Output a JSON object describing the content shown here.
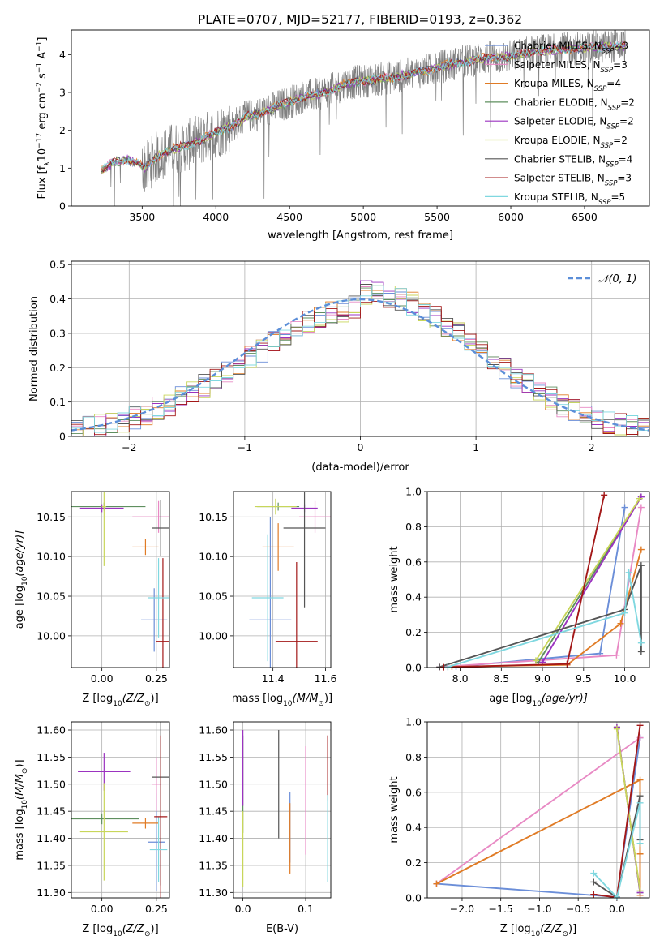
{
  "title": "PLATE=0707, MJD=52177, FIBERID=0193, z=0.362",
  "colors": {
    "Chabrier MILES": "#6b8ed8",
    "Salpeter MILES": "#e889c4",
    "Kroupa MILES": "#e07b25",
    "Chabrier ELODIE": "#5f8f5f",
    "Salpeter ELODIE": "#9b33c0",
    "Kroupa ELODIE": "#c8d65a",
    "Chabrier STELIB": "#555555",
    "Salpeter STELIB": "#a31818",
    "Kroupa STELIB": "#80d8e0",
    "gaussian": "#5b8ed8"
  },
  "legend": [
    {
      "name": "Chabrier MILES",
      "nssp": "3"
    },
    {
      "name": "Salpeter MILES",
      "nssp": "3"
    },
    {
      "name": "Kroupa MILES",
      "nssp": "4"
    },
    {
      "name": "Chabrier ELODIE",
      "nssp": "2"
    },
    {
      "name": "Salpeter ELODIE",
      "nssp": "2"
    },
    {
      "name": "Kroupa ELODIE",
      "nssp": "2"
    },
    {
      "name": "Chabrier STELIB",
      "nssp": "4"
    },
    {
      "name": "Salpeter STELIB",
      "nssp": "3"
    },
    {
      "name": "Kroupa STELIB",
      "nssp": "5"
    }
  ],
  "chart_data": [
    {
      "id": "spectrum",
      "type": "line",
      "xlabel": "wavelength [Angstrom, rest frame]",
      "ylabel_parts": [
        "Flux [f",
        "λ",
        "10",
        "−17",
        " erg cm",
        "−2",
        " s",
        "−1",
        " A",
        "−1",
        "]"
      ],
      "xlim": [
        3020,
        6940
      ],
      "ylim": [
        0,
        4.65
      ],
      "xticks": [
        3500,
        4000,
        4500,
        5000,
        5500,
        6000,
        6500
      ],
      "yticks": [
        0,
        1,
        2,
        3,
        4
      ],
      "grid": false,
      "legend_position": "top-right",
      "continuum_knots": [
        [
          3220,
          0.9
        ],
        [
          3300,
          1.15
        ],
        [
          3400,
          1.22
        ],
        [
          3480,
          1.12
        ],
        [
          3520,
          1.0
        ],
        [
          3600,
          1.3
        ],
        [
          3700,
          1.5
        ],
        [
          3800,
          1.6
        ],
        [
          3900,
          1.75
        ],
        [
          4000,
          1.95
        ],
        [
          4100,
          2.1
        ],
        [
          4200,
          2.35
        ],
        [
          4300,
          2.45
        ],
        [
          4400,
          2.6
        ],
        [
          4500,
          2.75
        ],
        [
          4600,
          2.9
        ],
        [
          4700,
          2.95
        ],
        [
          4800,
          3.1
        ],
        [
          4900,
          3.25
        ],
        [
          5000,
          3.3
        ],
        [
          5200,
          3.4
        ],
        [
          5400,
          3.55
        ],
        [
          5600,
          3.75
        ],
        [
          5800,
          3.9
        ],
        [
          6000,
          3.95
        ],
        [
          6200,
          4.1
        ],
        [
          6400,
          4.15
        ],
        [
          6600,
          4.2
        ],
        [
          6780,
          4.25
        ]
      ],
      "x_range": [
        3220,
        6780
      ]
    },
    {
      "id": "residuals",
      "type": "step",
      "xlabel": "(data-model)/error",
      "ylabel": "Normed distribution",
      "xlim": [
        -2.5,
        2.5
      ],
      "ylim": [
        0,
        0.51
      ],
      "xticks": [
        -2,
        -1,
        0,
        1,
        2
      ],
      "xtick_labels": [
        "−2",
        "−1",
        "0",
        "1",
        "2"
      ],
      "yticks": [
        0.0,
        0.1,
        0.2,
        0.3,
        0.4,
        0.5
      ],
      "grid": true,
      "legend_label": "𝒩(0, 1)",
      "legend_position": "top-right",
      "bin_width": 0.1
    },
    {
      "id": "age_vs_Z",
      "type": "errorbar",
      "xlabel_parts": [
        "Z [log",
        "10",
        "(Z/Z",
        "⊙",
        ")]"
      ],
      "ylabel_parts": [
        "age  [log",
        "10",
        "(age/yr)]"
      ],
      "xlim": [
        -0.14,
        0.31
      ],
      "ylim": [
        9.96,
        10.182
      ],
      "xticks": [
        0.0,
        0.25
      ],
      "xtick_labels": [
        "0.00",
        "0.25"
      ],
      "yticks": [
        10.0,
        10.05,
        10.1,
        10.15
      ],
      "ytick_labels": [
        "10.00",
        "10.05",
        "10.10",
        "10.15"
      ],
      "grid": true,
      "points": [
        {
          "model": "Chabrier MILES",
          "x": 0.24,
          "y": 10.02,
          "xerr": 0.06,
          "yerr": 0.04
        },
        {
          "model": "Salpeter MILES",
          "x": 0.26,
          "y": 10.15,
          "xerr": 0.12,
          "yerr": 0.02
        },
        {
          "model": "Kroupa MILES",
          "x": 0.2,
          "y": 10.112,
          "xerr": 0.06,
          "yerr": 0.01
        },
        {
          "model": "Chabrier ELODIE",
          "x": 0.01,
          "y": 10.163,
          "xerr": 0.19,
          "yerr": 0.005
        },
        {
          "model": "Salpeter ELODIE",
          "x": 0.0,
          "y": 10.161,
          "xerr": 0.1,
          "yerr": 0.005
        },
        {
          "model": "Kroupa ELODIE",
          "x": 0.01,
          "y": 10.163,
          "xerr": 0.01,
          "yerr": 0.075
        },
        {
          "model": "Chabrier STELIB",
          "x": 0.27,
          "y": 10.136,
          "xerr": 0.04,
          "yerr": 0.035
        },
        {
          "model": "Salpeter STELIB",
          "x": 0.28,
          "y": 9.993,
          "xerr": 0.03,
          "yerr": 0.105
        },
        {
          "model": "Kroupa STELIB",
          "x": 0.26,
          "y": 10.048,
          "xerr": 0.05,
          "yerr": 0.05
        }
      ]
    },
    {
      "id": "age_vs_mass",
      "type": "errorbar",
      "xlabel_parts": [
        "mass [log",
        "10",
        "(M/M",
        "⊙",
        ")]"
      ],
      "xlim": [
        11.25,
        11.62
      ],
      "ylim": [
        9.96,
        10.182
      ],
      "xticks": [
        11.4,
        11.6
      ],
      "xtick_labels": [
        "11.4",
        "11.6"
      ],
      "yticks": [
        10.0,
        10.05,
        10.1,
        10.15
      ],
      "ytick_labels": [
        "10.00",
        "10.05",
        "10.10",
        "10.15"
      ],
      "grid": true,
      "points": [
        {
          "model": "Chabrier MILES",
          "x": 11.39,
          "y": 10.02,
          "xerr": 0.08,
          "yerr": 0.13
        },
        {
          "model": "Salpeter MILES",
          "x": 11.56,
          "y": 10.15,
          "xerr": 0.06,
          "yerr": 0.02
        },
        {
          "model": "Kroupa MILES",
          "x": 11.42,
          "y": 10.112,
          "xerr": 0.06,
          "yerr": 0.03
        },
        {
          "model": "Chabrier ELODIE",
          "x": 11.42,
          "y": 10.163,
          "xerr": 0.08,
          "yerr": 0.005
        },
        {
          "model": "Salpeter ELODIE",
          "x": 11.52,
          "y": 10.161,
          "xerr": 0.05,
          "yerr": 0.005
        },
        {
          "model": "Kroupa ELODIE",
          "x": 11.41,
          "y": 10.163,
          "xerr": 0.08,
          "yerr": 0.01
        },
        {
          "model": "Chabrier STELIB",
          "x": 11.52,
          "y": 10.136,
          "xerr": 0.08,
          "yerr": 0.1
        },
        {
          "model": "Salpeter STELIB",
          "x": 11.49,
          "y": 9.993,
          "xerr": 0.08,
          "yerr": 0.1
        },
        {
          "model": "Kroupa STELIB",
          "x": 11.38,
          "y": 10.048,
          "xerr": 0.06,
          "yerr": 0.08
        }
      ]
    },
    {
      "id": "weight_vs_age",
      "type": "line",
      "xlabel_parts": [
        "age  [log",
        "10",
        "(age/yr)]"
      ],
      "ylabel": "mass weight",
      "xlim": [
        7.6,
        10.3
      ],
      "ylim": [
        0,
        1.0
      ],
      "xticks": [
        8.0,
        8.5,
        9.0,
        9.5,
        10.0
      ],
      "xtick_labels": [
        "8.0",
        "8.5",
        "9.0",
        "9.5",
        "10.0"
      ],
      "yticks": [
        0.0,
        0.2,
        0.4,
        0.6,
        0.8,
        1.0
      ],
      "ytick_labels": [
        "0.0",
        "0.2",
        "0.4",
        "0.6",
        "0.8",
        "1.0"
      ],
      "grid": true,
      "series": [
        {
          "model": "Chabrier MILES",
          "x": [
            7.95,
            9.7,
            10.0
          ],
          "y": [
            0.005,
            0.08,
            0.91
          ]
        },
        {
          "model": "Salpeter MILES",
          "x": [
            7.75,
            9.9,
            10.2
          ],
          "y": [
            0.003,
            0.07,
            0.91
          ]
        },
        {
          "model": "Kroupa MILES",
          "x": [
            7.9,
            9.3,
            9.95,
            10.2
          ],
          "y": [
            0.005,
            0.015,
            0.25,
            0.67
          ]
        },
        {
          "model": "Chabrier ELODIE",
          "x": [
            8.95,
            10.2
          ],
          "y": [
            0.03,
            0.97
          ]
        },
        {
          "model": "Salpeter ELODIE",
          "x": [
            9.0,
            10.2
          ],
          "y": [
            0.03,
            0.97
          ]
        },
        {
          "model": "Kroupa ELODIE",
          "x": [
            8.92,
            10.18
          ],
          "y": [
            0.04,
            0.96
          ]
        },
        {
          "model": "Chabrier STELIB",
          "x": [
            7.75,
            10.0,
            10.2,
            10.2
          ],
          "y": [
            0.003,
            0.33,
            0.58,
            0.09
          ]
        },
        {
          "model": "Salpeter STELIB",
          "x": [
            7.8,
            9.3,
            9.75
          ],
          "y": [
            0.002,
            0.02,
            0.98
          ]
        },
        {
          "model": "Kroupa STELIB",
          "x": [
            7.85,
            10.0,
            10.05,
            10.2
          ],
          "y": [
            0.003,
            0.31,
            0.54,
            0.14
          ]
        }
      ]
    },
    {
      "id": "mass_vs_Z",
      "type": "errorbar",
      "xlabel_parts": [
        "Z [log",
        "10",
        "(Z/Z",
        "⊙",
        ")]"
      ],
      "ylabel_parts": [
        "mass [log",
        "10",
        "(M/M",
        "⊙",
        ")]"
      ],
      "xlim": [
        -0.14,
        0.31
      ],
      "ylim": [
        11.29,
        11.615
      ],
      "xticks": [
        0.0,
        0.25
      ],
      "xtick_labels": [
        "0.00",
        "0.25"
      ],
      "yticks": [
        11.3,
        11.35,
        11.4,
        11.45,
        11.5,
        11.55,
        11.6
      ],
      "ytick_labels": [
        "11.30",
        "11.35",
        "11.40",
        "11.45",
        "11.50",
        "11.55",
        "11.60"
      ],
      "grid": true,
      "points": [
        {
          "model": "Chabrier MILES",
          "x": 0.25,
          "y": 11.393,
          "xerr": 0.04,
          "yerr": 0.09
        },
        {
          "model": "Salpeter MILES",
          "x": 0.25,
          "y": 11.5,
          "xerr": 0.02,
          "yerr": 0.05
        },
        {
          "model": "Kroupa MILES",
          "x": 0.2,
          "y": 11.428,
          "xerr": 0.06,
          "yerr": 0.01
        },
        {
          "model": "Chabrier ELODIE",
          "x": 0.0,
          "y": 11.436,
          "xerr": 0.17,
          "yerr": 0.01
        },
        {
          "model": "Salpeter ELODIE",
          "x": 0.01,
          "y": 11.523,
          "xerr": 0.12,
          "yerr": 0.035
        },
        {
          "model": "Kroupa ELODIE",
          "x": 0.01,
          "y": 11.412,
          "xerr": 0.11,
          "yerr": 0.09
        },
        {
          "model": "Chabrier STELIB",
          "x": 0.27,
          "y": 11.513,
          "xerr": 0.04,
          "yerr": 0.2
        },
        {
          "model": "Salpeter STELIB",
          "x": 0.27,
          "y": 11.44,
          "xerr": 0.03,
          "yerr": 0.15
        },
        {
          "model": "Kroupa STELIB",
          "x": 0.26,
          "y": 11.379,
          "xerr": 0.04,
          "yerr": 0.06
        }
      ]
    },
    {
      "id": "mass_vs_EBV",
      "type": "errorbar",
      "xlabel": "E(B-V)",
      "xlim": [
        -0.015,
        0.14
      ],
      "ylim": [
        11.29,
        11.615
      ],
      "xticks": [
        0.0,
        0.1
      ],
      "xtick_labels": [
        "0.0",
        "0.1"
      ],
      "yticks": [
        11.3,
        11.35,
        11.4,
        11.45,
        11.5,
        11.55,
        11.6
      ],
      "ytick_labels": [
        "11.30",
        "11.35",
        "11.40",
        "11.45",
        "11.50",
        "11.55",
        "11.60"
      ],
      "grid": true,
      "points": [
        {
          "model": "Chabrier MILES",
          "x": 0.075,
          "y": 11.42,
          "xerr": 0.0,
          "yerr": 0.065
        },
        {
          "model": "Salpeter MILES",
          "x": 0.1,
          "y": 11.47,
          "xerr": 0.0,
          "yerr": 0.1
        },
        {
          "model": "Kroupa MILES",
          "x": 0.075,
          "y": 11.4,
          "xerr": 0.0,
          "yerr": 0.065
        },
        {
          "model": "Chabrier ELODIE",
          "x": 0.0,
          "y": 11.5,
          "xerr": 0.0,
          "yerr": 0.09
        },
        {
          "model": "Salpeter ELODIE",
          "x": 0.0,
          "y": 11.53,
          "xerr": 0.0,
          "yerr": 0.07
        },
        {
          "model": "Kroupa ELODIE",
          "x": 0.0,
          "y": 11.38,
          "xerr": 0.0,
          "yerr": 0.07
        },
        {
          "model": "Chabrier STELIB",
          "x": 0.057,
          "y": 11.5,
          "xerr": 0.0,
          "yerr": 0.1
        },
        {
          "model": "Salpeter STELIB",
          "x": 0.135,
          "y": 11.53,
          "xerr": 0.0,
          "yerr": 0.06
        },
        {
          "model": "Kroupa STELIB",
          "x": 0.135,
          "y": 11.4,
          "xerr": 0.0,
          "yerr": 0.08
        }
      ]
    },
    {
      "id": "weight_vs_Z",
      "type": "line",
      "xlabel_parts": [
        "Z [log",
        "10",
        "(Z/Z",
        "⊙",
        ")]"
      ],
      "ylabel": "mass weight",
      "xlim": [
        -2.45,
        0.42
      ],
      "ylim": [
        0,
        1.0
      ],
      "xticks": [
        -2.0,
        -1.5,
        -1.0,
        -0.5,
        0.0
      ],
      "xtick_labels": [
        "−2.0",
        "−1.5",
        "−1.0",
        "−0.5",
        "0.0"
      ],
      "yticks": [
        0.0,
        0.2,
        0.4,
        0.6,
        0.8,
        1.0
      ],
      "ytick_labels": [
        "0.0",
        "0.2",
        "0.4",
        "0.6",
        "0.8",
        "1.0"
      ],
      "grid": true,
      "series": [
        {
          "model": "Chabrier MILES",
          "x": [
            -2.33,
            0.0,
            0.3
          ],
          "y": [
            0.08,
            0.005,
            0.91
          ]
        },
        {
          "model": "Salpeter MILES",
          "x": [
            -2.33,
            0.3
          ],
          "y": [
            0.08,
            0.91
          ]
        },
        {
          "model": "Kroupa MILES",
          "x": [
            -2.33,
            0.3,
            0.3,
            0.3
          ],
          "y": [
            0.08,
            0.67,
            0.25,
            0.015
          ]
        },
        {
          "model": "Chabrier ELODIE",
          "x": [
            0.0,
            0.3
          ],
          "y": [
            0.97,
            0.03
          ]
        },
        {
          "model": "Salpeter ELODIE",
          "x": [
            0.0,
            0.3
          ],
          "y": [
            0.97,
            0.03
          ]
        },
        {
          "model": "Kroupa ELODIE",
          "x": [
            0.0,
            0.3
          ],
          "y": [
            0.96,
            0.04
          ]
        },
        {
          "model": "Chabrier STELIB",
          "x": [
            -0.3,
            0.0,
            0.3,
            0.3
          ],
          "y": [
            0.09,
            0.003,
            0.58,
            0.33
          ]
        },
        {
          "model": "Salpeter STELIB",
          "x": [
            -0.3,
            0.0,
            0.3
          ],
          "y": [
            0.02,
            0.002,
            0.98
          ]
        },
        {
          "model": "Kroupa STELIB",
          "x": [
            -0.3,
            0.0,
            0.3,
            0.3
          ],
          "y": [
            0.14,
            0.003,
            0.54,
            0.31
          ]
        }
      ]
    }
  ]
}
